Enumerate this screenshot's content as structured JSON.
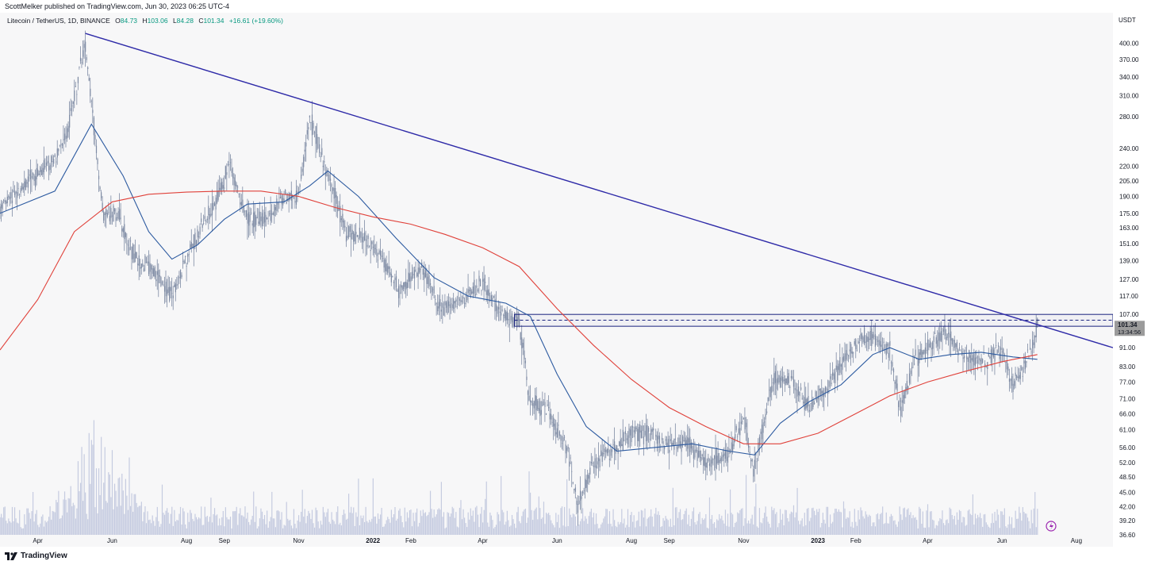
{
  "header": {
    "published_by": "ScottMelker published on TradingView.com, Jun 30, 2023 06:25 UTC-4"
  },
  "legend": {
    "symbol": "Litecoin / TetherUS, 1D, BINANCE",
    "o_label": "O",
    "o_value": "84.73",
    "h_label": "H",
    "h_value": "103.06",
    "l_label": "L",
    "l_value": "84.28",
    "c_label": "C",
    "c_value": "101.34",
    "change": "+16.61 (+19.60%)"
  },
  "footer": {
    "brand": "TradingView"
  },
  "colors": {
    "background": "#f7f7f8",
    "candles": "#7d8aa3",
    "ma_fast": "#2c5aa0",
    "ma_slow": "#e0413a",
    "trendline": "#2e2aa8",
    "box": "#1a237e",
    "volume": "#c5cbe0",
    "price_tag": "#9b9b9b",
    "alert_icon": "#9c27b0"
  },
  "icons": {
    "alert": "lightning-bolt-icon",
    "brand": "tradingview-logo-icon"
  },
  "chart_data": {
    "type": "line",
    "title": "Litecoin / TetherUS, 1D, BINANCE",
    "y_axis_unit": "USDT",
    "y_scale": "log",
    "ylim": [
      36.6,
      430
    ],
    "y_ticks": [
      "400.00",
      "370.00",
      "340.00",
      "310.00",
      "280.00",
      "240.00",
      "220.00",
      "205.00",
      "190.00",
      "175.00",
      "163.00",
      "151.00",
      "139.00",
      "127.00",
      "117.00",
      "107.00",
      "91.00",
      "83.00",
      "77.00",
      "71.00",
      "66.00",
      "61.00",
      "56.00",
      "52.00",
      "48.50",
      "45.00",
      "42.00",
      "39.20",
      "36.60"
    ],
    "x_ticks": [
      "Apr",
      "Jun",
      "Aug",
      "Sep",
      "Nov",
      "2022",
      "Feb",
      "Apr",
      "Jun",
      "Aug",
      "Sep",
      "Nov",
      "2023",
      "Feb",
      "Apr",
      "Jun",
      "Aug"
    ],
    "xlim": [
      "2021-03-01",
      "2023-08-31"
    ],
    "current_price": {
      "value": "101.34",
      "countdown": "13:34:56"
    },
    "series": [
      {
        "name": "",
        "style": "price",
        "points": [
          [
            "2021-03-01",
            180
          ],
          [
            "2021-03-20",
            200
          ],
          [
            "2021-04-05",
            215
          ],
          [
            "2021-04-15",
            230
          ],
          [
            "2021-04-25",
            260
          ],
          [
            "2021-05-05",
            350
          ],
          [
            "2021-05-10",
            400
          ],
          [
            "2021-05-15",
            300
          ],
          [
            "2021-05-25",
            170
          ],
          [
            "2021-06-05",
            175
          ],
          [
            "2021-06-20",
            140
          ],
          [
            "2021-07-01",
            135
          ],
          [
            "2021-07-20",
            118
          ],
          [
            "2021-08-05",
            150
          ],
          [
            "2021-08-20",
            175
          ],
          [
            "2021-09-05",
            220
          ],
          [
            "2021-09-20",
            170
          ],
          [
            "2021-10-05",
            170
          ],
          [
            "2021-10-20",
            190
          ],
          [
            "2021-11-01",
            190
          ],
          [
            "2021-11-10",
            280
          ],
          [
            "2021-11-25",
            210
          ],
          [
            "2021-12-10",
            160
          ],
          [
            "2021-12-25",
            155
          ],
          [
            "2022-01-05",
            145
          ],
          [
            "2022-01-22",
            120
          ],
          [
            "2022-02-10",
            135
          ],
          [
            "2022-02-25",
            110
          ],
          [
            "2022-03-15",
            115
          ],
          [
            "2022-04-01",
            125
          ],
          [
            "2022-04-15",
            108
          ],
          [
            "2022-05-01",
            103
          ],
          [
            "2022-05-10",
            70
          ],
          [
            "2022-05-25",
            67
          ],
          [
            "2022-06-10",
            55
          ],
          [
            "2022-06-18",
            42
          ],
          [
            "2022-07-01",
            52
          ],
          [
            "2022-07-15",
            55
          ],
          [
            "2022-08-01",
            60
          ],
          [
            "2022-08-15",
            60
          ],
          [
            "2022-09-01",
            56
          ],
          [
            "2022-09-15",
            58
          ],
          [
            "2022-10-01",
            52
          ],
          [
            "2022-10-20",
            54
          ],
          [
            "2022-11-01",
            65
          ],
          [
            "2022-11-09",
            50
          ],
          [
            "2022-11-25",
            78
          ],
          [
            "2022-12-10",
            78
          ],
          [
            "2022-12-25",
            68
          ],
          [
            "2023-01-10",
            76
          ],
          [
            "2023-01-25",
            89
          ],
          [
            "2023-02-10",
            97
          ],
          [
            "2023-02-20",
            94
          ],
          [
            "2023-03-01",
            90
          ],
          [
            "2023-03-10",
            67
          ],
          [
            "2023-03-20",
            85
          ],
          [
            "2023-04-01",
            91
          ],
          [
            "2023-04-15",
            98
          ],
          [
            "2023-05-01",
            88
          ],
          [
            "2023-05-15",
            84
          ],
          [
            "2023-06-01",
            91
          ],
          [
            "2023-06-10",
            75
          ],
          [
            "2023-06-20",
            84
          ],
          [
            "2023-06-30",
            101
          ]
        ]
      },
      {
        "name": "",
        "style": "ma_fast",
        "points": [
          [
            "2021-03-01",
            175
          ],
          [
            "2021-04-15",
            195
          ],
          [
            "2021-05-15",
            270
          ],
          [
            "2021-06-10",
            210
          ],
          [
            "2021-07-01",
            160
          ],
          [
            "2021-07-20",
            140
          ],
          [
            "2021-08-10",
            150
          ],
          [
            "2021-09-01",
            170
          ],
          [
            "2021-09-20",
            183
          ],
          [
            "2021-10-20",
            185
          ],
          [
            "2021-11-10",
            200
          ],
          [
            "2021-11-25",
            215
          ],
          [
            "2021-12-20",
            190
          ],
          [
            "2022-01-20",
            155
          ],
          [
            "2022-02-20",
            128
          ],
          [
            "2022-03-20",
            117
          ],
          [
            "2022-04-20",
            113
          ],
          [
            "2022-05-10",
            106
          ],
          [
            "2022-06-01",
            80
          ],
          [
            "2022-06-25",
            62
          ],
          [
            "2022-07-20",
            55
          ],
          [
            "2022-08-20",
            56
          ],
          [
            "2022-09-20",
            57
          ],
          [
            "2022-10-20",
            55
          ],
          [
            "2022-11-10",
            54
          ],
          [
            "2022-12-01",
            63
          ],
          [
            "2022-12-25",
            70
          ],
          [
            "2023-01-20",
            76
          ],
          [
            "2023-02-15",
            88
          ],
          [
            "2023-03-01",
            91
          ],
          [
            "2023-03-25",
            86
          ],
          [
            "2023-04-20",
            88
          ],
          [
            "2023-05-15",
            89
          ],
          [
            "2023-06-10",
            87
          ],
          [
            "2023-06-30",
            86
          ]
        ]
      },
      {
        "name": "",
        "style": "ma_slow",
        "points": [
          [
            "2021-03-01",
            90
          ],
          [
            "2021-04-01",
            115
          ],
          [
            "2021-05-01",
            160
          ],
          [
            "2021-06-01",
            185
          ],
          [
            "2021-07-01",
            192
          ],
          [
            "2021-08-01",
            194
          ],
          [
            "2021-09-01",
            195
          ],
          [
            "2021-10-01",
            195
          ],
          [
            "2021-11-01",
            190
          ],
          [
            "2021-12-01",
            180
          ],
          [
            "2022-01-01",
            172
          ],
          [
            "2022-02-01",
            166
          ],
          [
            "2022-03-01",
            158
          ],
          [
            "2022-04-01",
            148
          ],
          [
            "2022-05-01",
            135
          ],
          [
            "2022-06-01",
            110
          ],
          [
            "2022-07-01",
            92
          ],
          [
            "2022-08-01",
            78
          ],
          [
            "2022-09-01",
            68
          ],
          [
            "2022-10-01",
            62
          ],
          [
            "2022-11-01",
            57
          ],
          [
            "2022-12-01",
            57
          ],
          [
            "2023-01-01",
            60
          ],
          [
            "2023-02-01",
            66
          ],
          [
            "2023-03-01",
            72
          ],
          [
            "2023-04-01",
            77
          ],
          [
            "2023-05-01",
            81
          ],
          [
            "2023-06-01",
            85
          ],
          [
            "2023-06-30",
            88
          ]
        ]
      },
      {
        "name": "",
        "style": "trendline",
        "points": [
          [
            "2021-05-10",
            420
          ],
          [
            "2023-08-31",
            91
          ]
        ]
      }
    ],
    "zone": {
      "from": "2022-04-27",
      "to": "2023-08-31",
      "low": 101,
      "high": 107,
      "mid": 104
    },
    "volume": {
      "peak_date": "2021-05-20",
      "baseline": "low"
    }
  }
}
